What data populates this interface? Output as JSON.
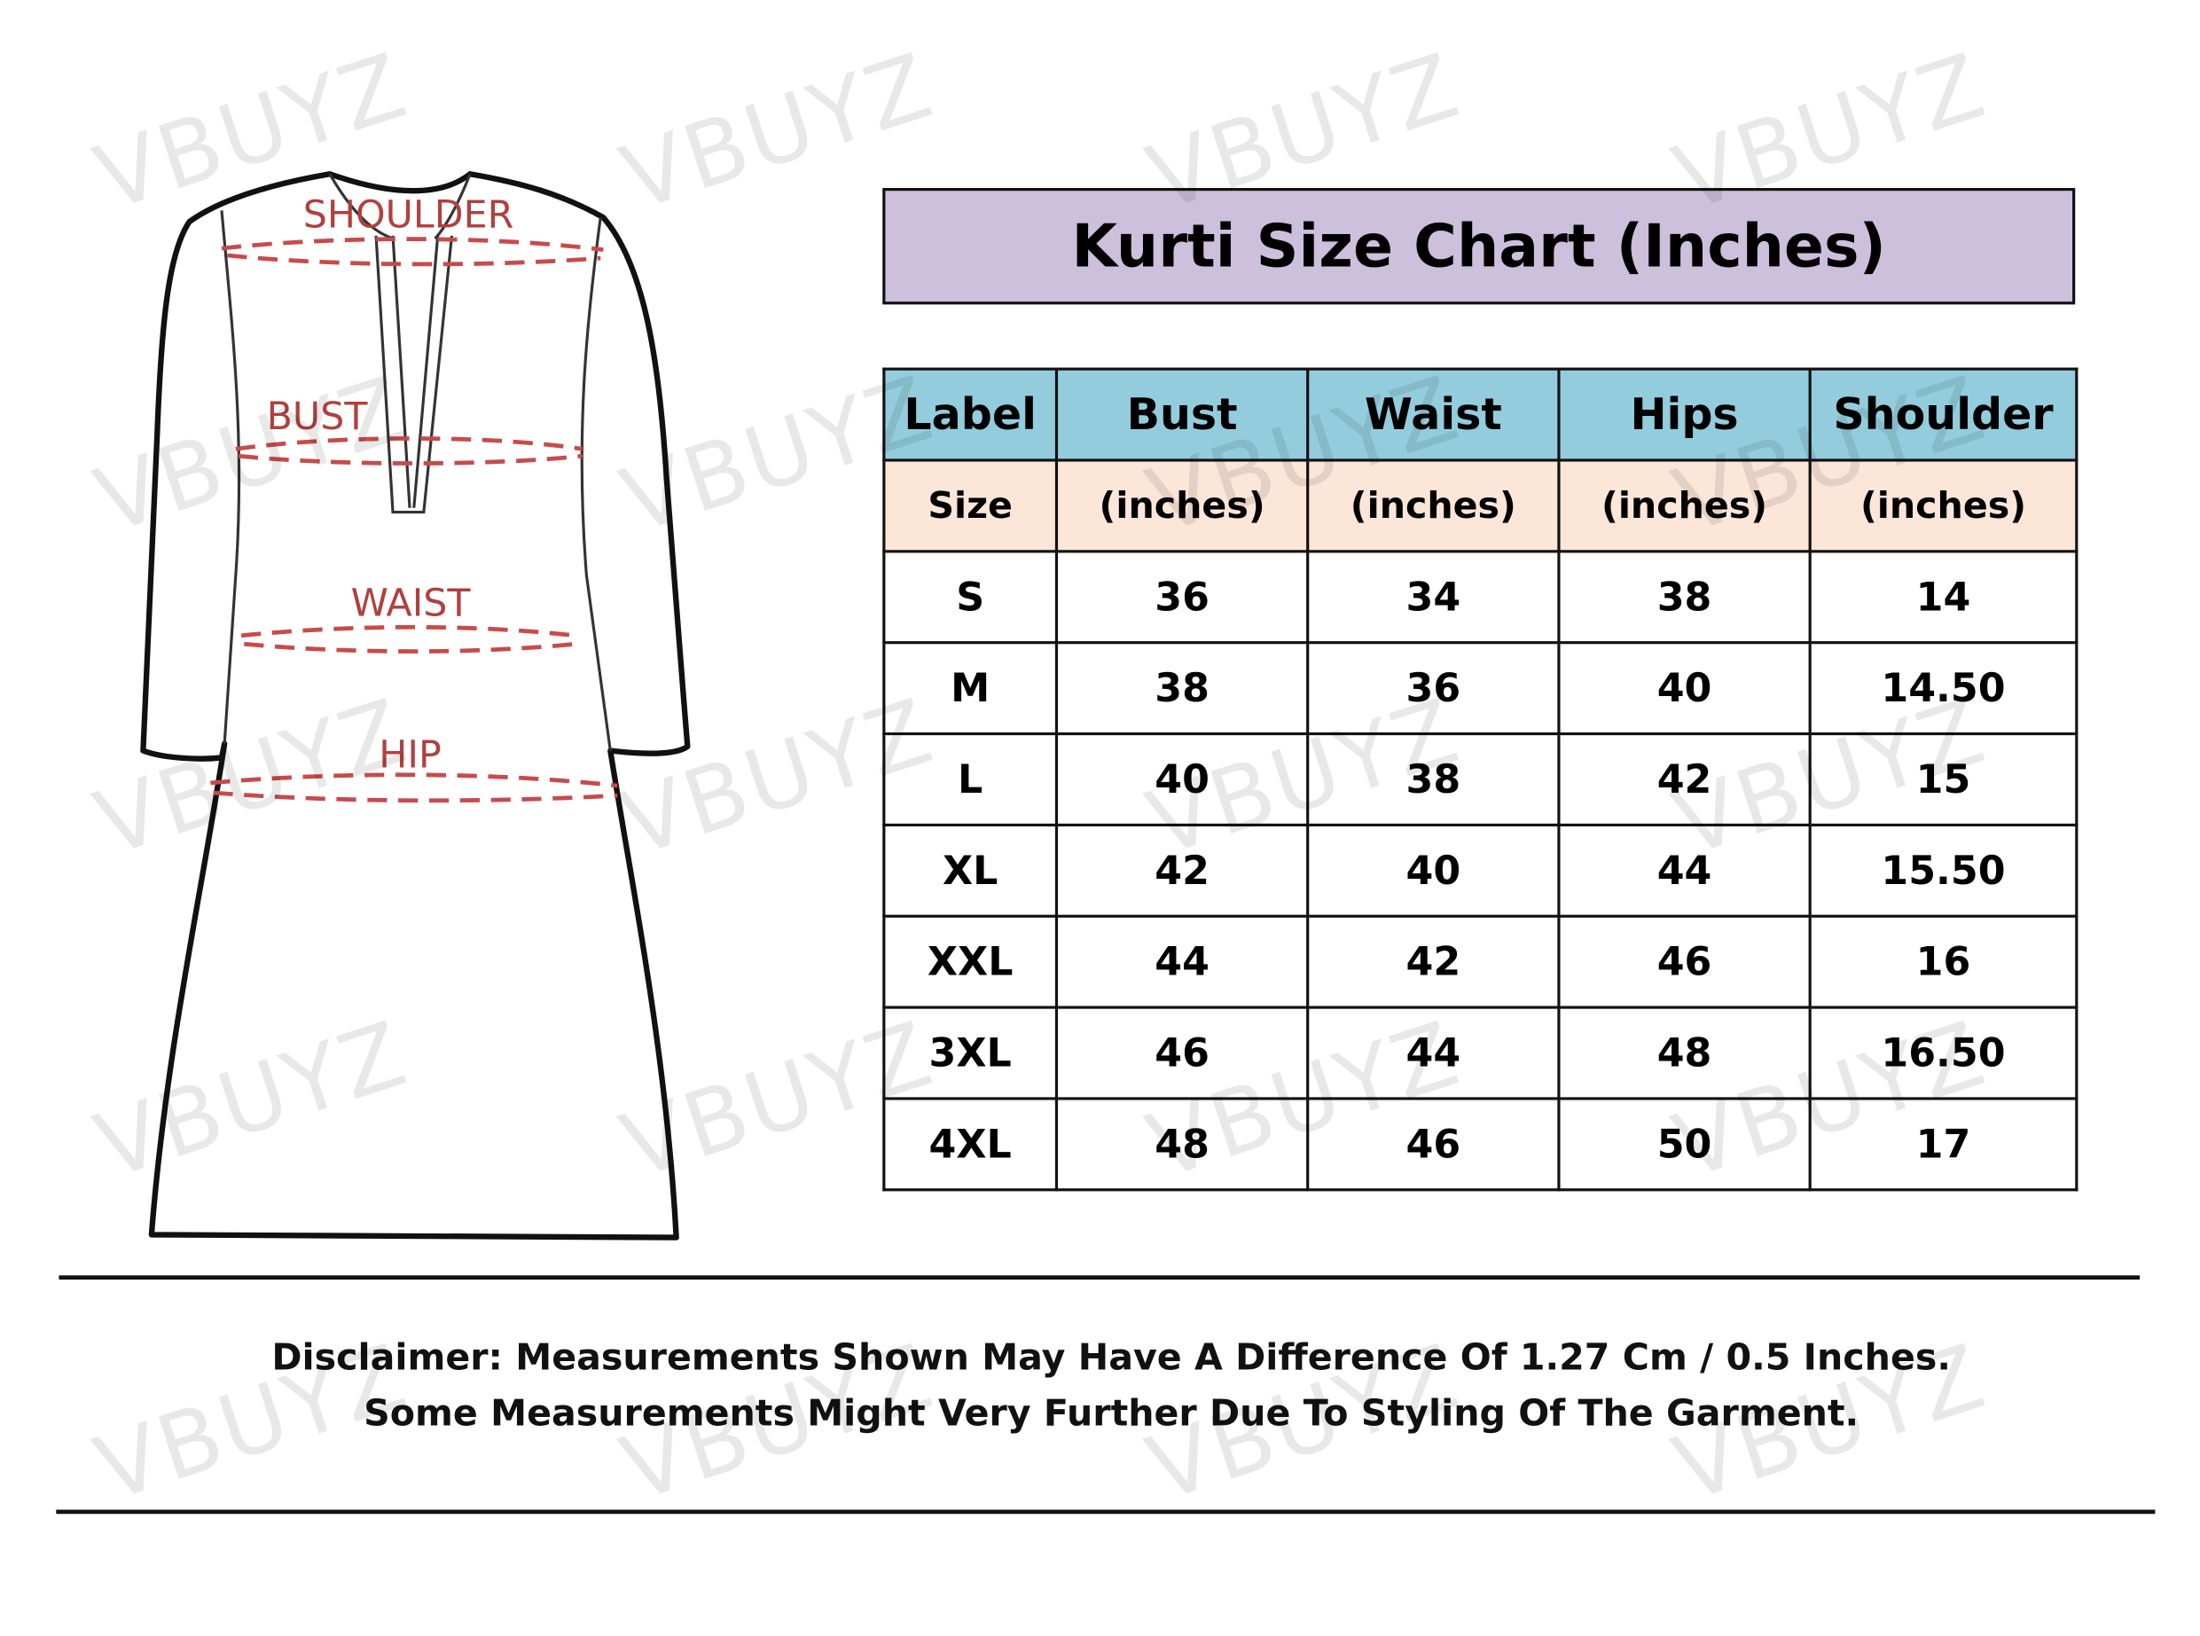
{
  "watermark": "VBUYZ",
  "diagram": {
    "labels": {
      "shoulder": "SHOULDER",
      "bust": "BUST",
      "waist": "WAIST",
      "hip": "HIP"
    }
  },
  "title": "Kurti Size Chart (Inches)",
  "table": {
    "headers": [
      "Label",
      "Bust",
      "Waist",
      "Hips",
      "Shoulder"
    ],
    "subheaders": [
      "Size",
      "(inches)",
      "(inches)",
      "(inches)",
      "(inches)"
    ],
    "rows": [
      [
        "S",
        "36",
        "34",
        "38",
        "14"
      ],
      [
        "M",
        "38",
        "36",
        "40",
        "14.50"
      ],
      [
        "L",
        "40",
        "38",
        "42",
        "15"
      ],
      [
        "XL",
        "42",
        "40",
        "44",
        "15.50"
      ],
      [
        "XXL",
        "44",
        "42",
        "46",
        "16"
      ],
      [
        "3XL",
        "46",
        "44",
        "48",
        "16.50"
      ],
      [
        "4XL",
        "48",
        "46",
        "50",
        "17"
      ]
    ]
  },
  "disclaimer": {
    "line1": "Disclaimer: Measurements Shown May Have A Difference Of 1.27 Cm / 0.5 Inches.",
    "line2": "Some Measurements Might Very Further Due To Styling Of The Garment."
  },
  "colors": {
    "title_bg": "#cdc0dc",
    "header_bg": "#93cddd",
    "subheader_bg": "#fbe6d8",
    "measure_line": "#c94a4a"
  }
}
